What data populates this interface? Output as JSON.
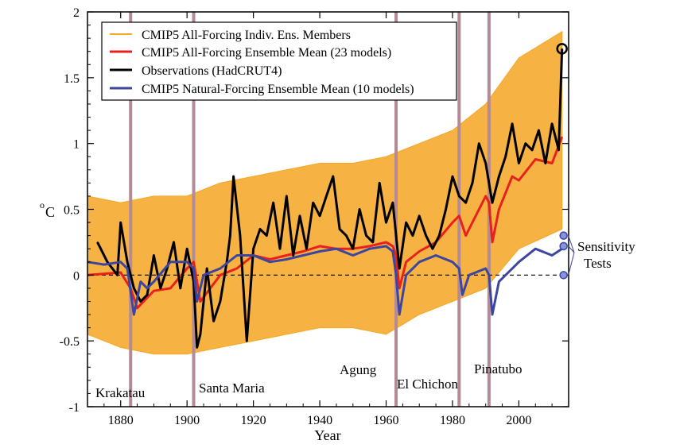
{
  "chart_data": {
    "type": "line",
    "title": "",
    "xlabel": "Year",
    "ylabel": "°C",
    "ylabel_main": "C",
    "ylabel_sup": "o",
    "xlim": [
      1870,
      2015
    ],
    "ylim": [
      -1,
      2
    ],
    "x_ticks": [
      1880,
      1900,
      1920,
      1940,
      1960,
      1980,
      2000
    ],
    "x_tick_labels": [
      "1880",
      "1900",
      "1920",
      "1940",
      "1960",
      "1980",
      "2000"
    ],
    "y_ticks": [
      -1,
      -0.5,
      0,
      0.5,
      1,
      1.5,
      2
    ],
    "y_tick_labels": [
      "-1",
      "-0.5",
      "0",
      "0.5",
      "1",
      "1.5",
      "2"
    ],
    "grid": false,
    "zero_line": "dashed",
    "legend_position": "top-left",
    "legend": [
      {
        "label": "CMIP5 All-Forcing Indiv. Ens. Members",
        "color": "#f5a623"
      },
      {
        "label": "CMIP5 All-Forcing Ensemble Mean (23 models)",
        "color": "#e8211d"
      },
      {
        "label": "Observations (HadCRUT4)",
        "color": "#000000"
      },
      {
        "label": "CMIP5 Natural-Forcing Ensemble Mean (10 models)",
        "color": "#3c46a0"
      }
    ],
    "volcanoes": [
      {
        "name": "Krakatau",
        "year": 1883
      },
      {
        "name": "Santa Maria",
        "year": 1902
      },
      {
        "name": "Agung",
        "year": 1963
      },
      {
        "name": "El Chichon",
        "year": 1982
      },
      {
        "name": "Pinatubo",
        "year": 1991
      }
    ],
    "volcano_color": "#b48a94",
    "ensemble_band": {
      "color": "#f5a623",
      "x": [
        1870,
        1880,
        1890,
        1900,
        1910,
        1920,
        1930,
        1940,
        1950,
        1960,
        1970,
        1980,
        1990,
        2000,
        2013
      ],
      "lower": [
        -0.45,
        -0.55,
        -0.6,
        -0.6,
        -0.55,
        -0.5,
        -0.45,
        -0.4,
        -0.4,
        -0.45,
        -0.3,
        -0.2,
        -0.1,
        0.2,
        0.35
      ],
      "upper": [
        0.6,
        0.55,
        0.6,
        0.6,
        0.7,
        0.75,
        0.8,
        0.85,
        0.85,
        0.9,
        1.0,
        1.1,
        1.3,
        1.65,
        1.85
      ]
    },
    "series": [
      {
        "name": "CMIP5 All-Forcing Ensemble Mean (23 models)",
        "color": "#e8211d",
        "x": [
          1870,
          1880,
          1883,
          1885,
          1890,
          1895,
          1900,
          1902,
          1904,
          1910,
          1915,
          1920,
          1925,
          1930,
          1935,
          1940,
          1945,
          1950,
          1955,
          1960,
          1962,
          1963,
          1964,
          1966,
          1970,
          1975,
          1980,
          1982,
          1984,
          1986,
          1990,
          1991,
          1992,
          1994,
          1998,
          2000,
          2005,
          2010,
          2013
        ],
        "y": [
          0.0,
          0.02,
          -0.1,
          -0.25,
          -0.12,
          -0.1,
          0.05,
          0.1,
          -0.2,
          0.0,
          0.05,
          0.15,
          0.12,
          0.15,
          0.18,
          0.22,
          0.2,
          0.2,
          0.22,
          0.25,
          0.22,
          0.15,
          -0.1,
          0.1,
          0.18,
          0.25,
          0.4,
          0.45,
          0.3,
          0.4,
          0.6,
          0.55,
          0.25,
          0.5,
          0.75,
          0.72,
          0.88,
          0.85,
          1.05
        ]
      },
      {
        "name": "Observations (HadCRUT4)",
        "color": "#000000",
        "x": [
          1873,
          1876,
          1879,
          1880,
          1882,
          1884,
          1886,
          1888,
          1890,
          1892,
          1894,
          1896,
          1898,
          1900,
          1902,
          1903,
          1904,
          1906,
          1908,
          1910,
          1912,
          1913,
          1914,
          1916,
          1918,
          1920,
          1922,
          1924,
          1926,
          1928,
          1930,
          1932,
          1934,
          1936,
          1938,
          1940,
          1942,
          1944,
          1946,
          1948,
          1950,
          1952,
          1954,
          1956,
          1958,
          1960,
          1962,
          1964,
          1966,
          1968,
          1970,
          1972,
          1974,
          1976,
          1978,
          1980,
          1982,
          1984,
          1986,
          1988,
          1990,
          1992,
          1994,
          1996,
          1998,
          2000,
          2002,
          2004,
          2006,
          2008,
          2010,
          2012,
          2013
        ],
        "y": [
          0.25,
          0.1,
          0.0,
          0.4,
          0.1,
          -0.1,
          -0.2,
          -0.15,
          0.15,
          -0.1,
          0.05,
          0.25,
          -0.1,
          0.2,
          -0.05,
          -0.55,
          -0.45,
          0.05,
          -0.35,
          -0.2,
          0.1,
          0.3,
          0.75,
          0.3,
          -0.5,
          0.2,
          0.35,
          0.3,
          0.55,
          0.2,
          0.6,
          0.15,
          0.45,
          0.2,
          0.55,
          0.45,
          0.6,
          0.75,
          0.35,
          0.3,
          0.2,
          0.5,
          0.3,
          0.25,
          0.7,
          0.4,
          0.55,
          0.05,
          0.4,
          0.3,
          0.45,
          0.3,
          0.2,
          0.3,
          0.5,
          0.75,
          0.6,
          0.55,
          0.7,
          1.0,
          0.85,
          0.55,
          0.75,
          0.9,
          1.15,
          0.85,
          1.0,
          0.95,
          1.1,
          0.85,
          1.15,
          0.95,
          1.72
        ]
      },
      {
        "name": "CMIP5 Natural-Forcing Ensemble Mean (10 models)",
        "color": "#3c46a0",
        "x": [
          1870,
          1875,
          1880,
          1882,
          1884,
          1886,
          1888,
          1890,
          1895,
          1900,
          1902,
          1903,
          1905,
          1910,
          1915,
          1920,
          1925,
          1930,
          1935,
          1940,
          1945,
          1950,
          1955,
          1960,
          1962,
          1963,
          1964,
          1966,
          1970,
          1975,
          1980,
          1982,
          1983,
          1985,
          1990,
          1991,
          1992,
          1994,
          2000,
          2005,
          2010,
          2013
        ],
        "y": [
          0.1,
          0.08,
          0.1,
          0.05,
          -0.3,
          -0.05,
          -0.1,
          -0.05,
          0.1,
          0.1,
          0.05,
          -0.2,
          0.0,
          0.05,
          0.15,
          0.15,
          0.1,
          0.12,
          0.15,
          0.18,
          0.2,
          0.15,
          0.2,
          0.22,
          0.18,
          0.0,
          -0.3,
          0.0,
          0.1,
          0.15,
          0.1,
          0.05,
          -0.15,
          0.0,
          0.05,
          0.0,
          -0.3,
          -0.05,
          0.1,
          0.2,
          0.15,
          0.2
        ]
      }
    ],
    "endpoint_marker": {
      "year": 2013,
      "value": 1.72,
      "color": "#000000"
    },
    "sensitivity_tests": {
      "label_lines": [
        "Sensitivity",
        "Tests"
      ],
      "year": 2013,
      "values": [
        0.3,
        0.22,
        0.0
      ],
      "color": "#3c46a0"
    }
  }
}
